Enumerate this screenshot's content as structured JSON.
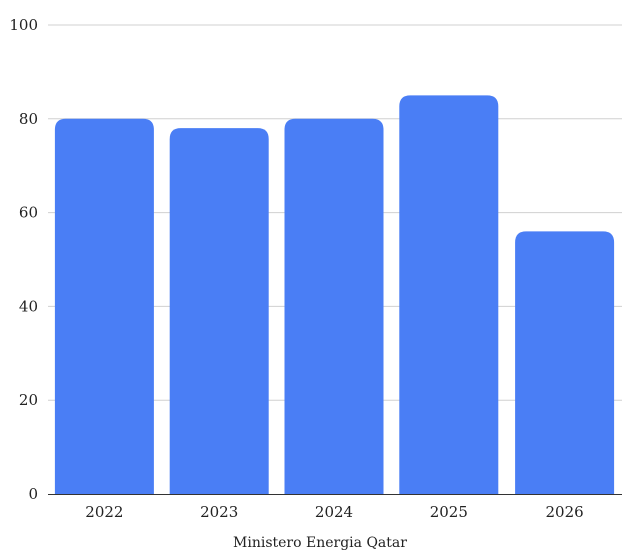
{
  "chart_data": {
    "type": "bar",
    "categories": [
      "2022",
      "2023",
      "2024",
      "2025",
      "2026"
    ],
    "values": [
      80,
      78,
      80,
      85,
      56
    ],
    "title": "",
    "xlabel": "Ministero Energia Qatar",
    "ylabel": "",
    "ylim": [
      0,
      100
    ],
    "yticks": [
      0,
      20,
      40,
      60,
      80,
      100
    ],
    "grid": true,
    "bar_color": "#4a7ef5"
  }
}
